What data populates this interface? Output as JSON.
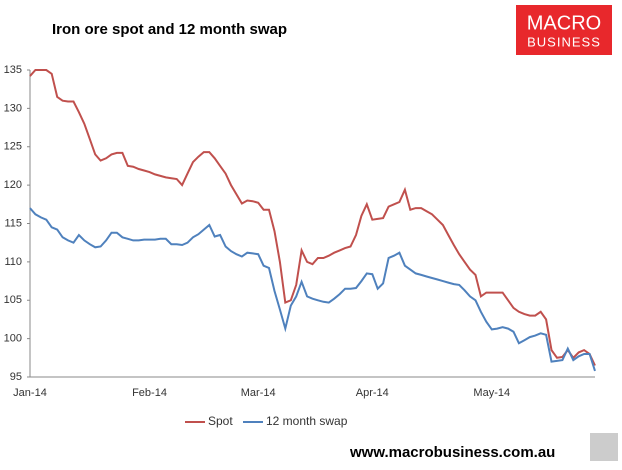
{
  "header": {
    "logo_top": "MACRO",
    "logo_bottom": "BUSINESS"
  },
  "footer": {
    "url": "www.macrobusiness.com.au"
  },
  "chart_data": {
    "type": "line",
    "title": "Iron ore spot and 12 month swap",
    "categories": [
      "Jan-14",
      null,
      null,
      null,
      null,
      null,
      null,
      null,
      null,
      null,
      null,
      null,
      null,
      null,
      null,
      null,
      null,
      null,
      null,
      null,
      null,
      null,
      "Feb-14",
      null,
      null,
      null,
      null,
      null,
      null,
      null,
      null,
      null,
      null,
      null,
      null,
      null,
      null,
      null,
      null,
      null,
      null,
      null,
      "Mar-14",
      null,
      null,
      null,
      null,
      null,
      null,
      null,
      null,
      null,
      null,
      null,
      null,
      null,
      null,
      null,
      null,
      null,
      null,
      null,
      null,
      "Apr-14",
      null,
      null,
      null,
      null,
      null,
      null,
      null,
      null,
      null,
      null,
      null,
      null,
      null,
      null,
      null,
      null,
      null,
      null,
      null,
      null,
      null,
      "May-14",
      null,
      null,
      null,
      null,
      null,
      null,
      null,
      null,
      null,
      null,
      null,
      null,
      null,
      null,
      null,
      null,
      null,
      null,
      null
    ],
    "series": [
      {
        "name": "Spot",
        "color": "#c0504d",
        "values": [
          134.2,
          135,
          135,
          135,
          134.5,
          131.5,
          131,
          130.9,
          130.9,
          129.5,
          128,
          126,
          124,
          123.2,
          123.5,
          124,
          124.2,
          124.2,
          122.5,
          122.4,
          122.1,
          121.9,
          121.7,
          121.4,
          121.2,
          121,
          120.9,
          120.8,
          120,
          121.5,
          123,
          123.7,
          124.3,
          124.3,
          123.5,
          122.5,
          121.5,
          120,
          118.8,
          117.6,
          118,
          117.9,
          117.7,
          116.8,
          116.8,
          114,
          110,
          104.7,
          105,
          107,
          111.5,
          110,
          109.7,
          110.5,
          110.5,
          110.8,
          111.2,
          111.5,
          111.8,
          112,
          113.5,
          116,
          117.5,
          115.5,
          115.6,
          115.7,
          117.2,
          117.5,
          117.8,
          119.4,
          116.8,
          117,
          117,
          116.6,
          116.2,
          115.5,
          114.8,
          113.5,
          112.2,
          111,
          110,
          109,
          108.3,
          105.5,
          106,
          106,
          106,
          106,
          105,
          104,
          103.5,
          103.2,
          103,
          103,
          103.5,
          102.5,
          98.5,
          97.5,
          97.6,
          98.5,
          97.5,
          98.2,
          98.5,
          98,
          96.5
        ]
      },
      {
        "name": "12 month swap",
        "color": "#4f81bd",
        "values": [
          117,
          116.2,
          115.8,
          115.5,
          114.5,
          114.2,
          113.2,
          112.8,
          112.5,
          113.5,
          112.8,
          112.3,
          111.9,
          112,
          112.8,
          113.8,
          113.8,
          113.2,
          113,
          112.8,
          112.8,
          112.9,
          112.9,
          112.9,
          113,
          113,
          112.3,
          112.3,
          112.2,
          112.5,
          113.2,
          113.6,
          114.2,
          114.8,
          113.3,
          113.5,
          112,
          111.4,
          111,
          110.7,
          111.2,
          111.1,
          111,
          109.5,
          109.2,
          106.2,
          103.8,
          101.3,
          104.3,
          105.5,
          107.4,
          105.5,
          105.2,
          105,
          104.8,
          104.7,
          105.2,
          105.8,
          106.5,
          106.5,
          106.6,
          107.5,
          108.5,
          108.4,
          106.5,
          107.2,
          110.5,
          110.8,
          111.2,
          109.5,
          109,
          108.5,
          108.3,
          108.1,
          107.9,
          107.7,
          107.5,
          107.3,
          107.1,
          107,
          106.3,
          105.5,
          105,
          103.5,
          102.2,
          101.2,
          101.3,
          101.5,
          101.3,
          100.9,
          99.4,
          99.8,
          100.2,
          100.4,
          100.7,
          100.5,
          97,
          97.1,
          97.2,
          98.7,
          97.2,
          97.7,
          98,
          98,
          95.8
        ]
      }
    ],
    "ylim": [
      95,
      135
    ],
    "yticks": [
      95,
      100,
      105,
      110,
      115,
      120,
      125,
      130,
      135
    ],
    "grid": false,
    "legend": "bottom"
  }
}
